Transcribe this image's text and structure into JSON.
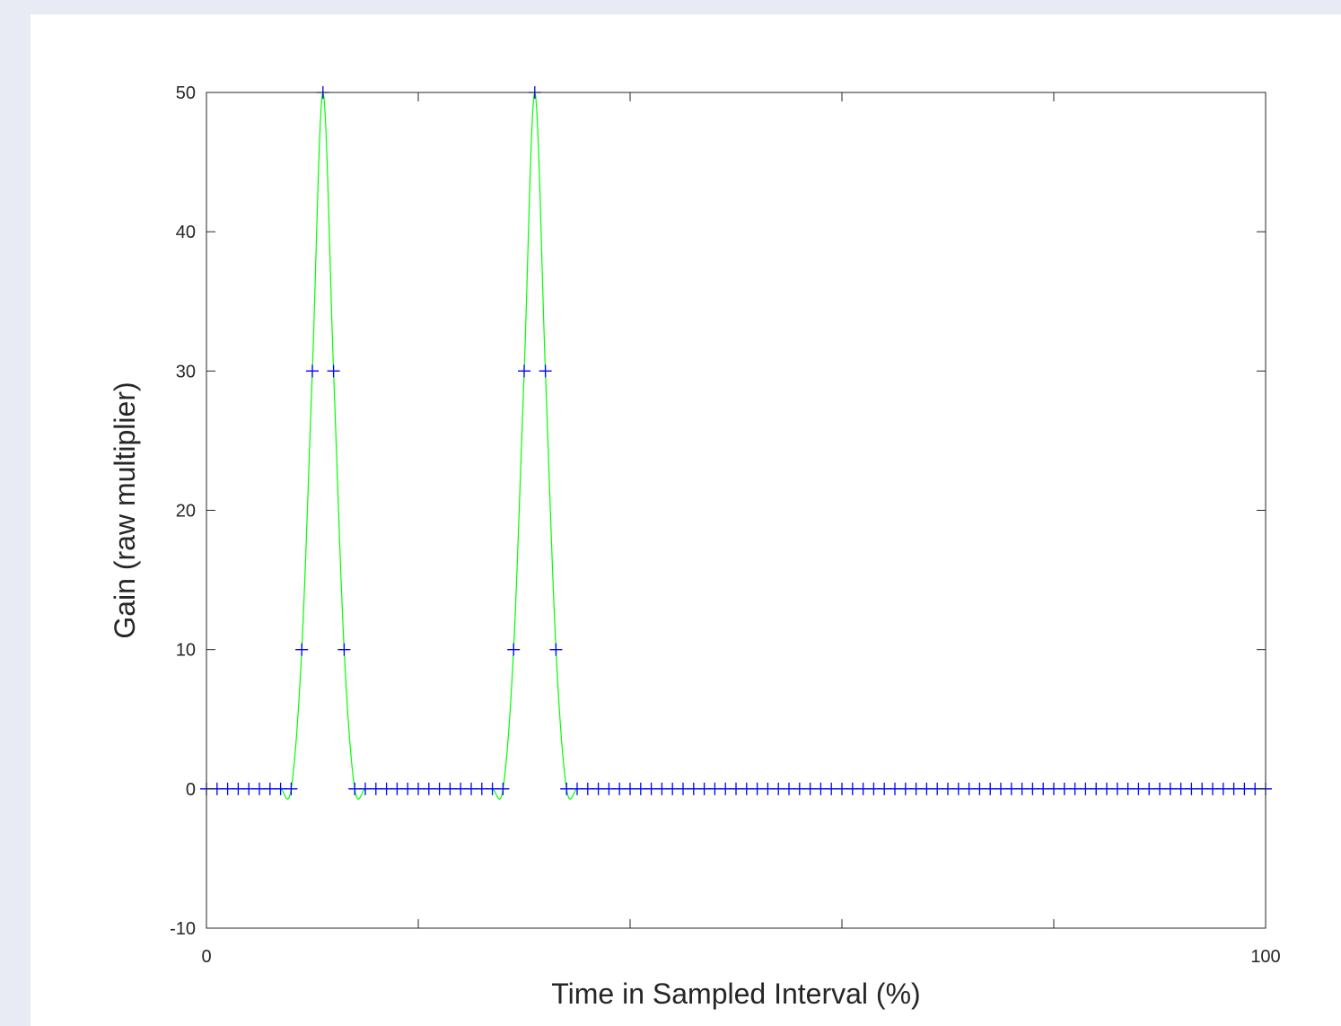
{
  "chart_data": {
    "type": "line",
    "title": "",
    "xlabel": "Time in Sampled Interval (%)",
    "ylabel": "Gain (raw multiplier)",
    "xlim": [
      0,
      100
    ],
    "ylim": [
      -10,
      50
    ],
    "x_tick_labels": [
      {
        "value": 0,
        "label": "0"
      },
      {
        "value": 100,
        "label": "100"
      }
    ],
    "x_minor_ticks": [
      20,
      40,
      60,
      80
    ],
    "y_tick_labels": [
      {
        "value": -10,
        "label": "-10"
      },
      {
        "value": 0,
        "label": "0"
      },
      {
        "value": 10,
        "label": "10"
      },
      {
        "value": 20,
        "label": "20"
      },
      {
        "value": 30,
        "label": "30"
      },
      {
        "value": 40,
        "label": "40"
      },
      {
        "value": 50,
        "label": "50"
      }
    ],
    "grid": false,
    "legend": "none",
    "colors": {
      "curve": "#00ff00",
      "markers": "#0000ff",
      "axes": "#262626"
    },
    "series": [
      {
        "style": "markers",
        "marker": "+",
        "x": [
          0,
          1,
          2,
          3,
          4,
          5,
          6,
          7,
          8,
          9,
          10,
          11,
          12,
          13,
          14,
          15,
          16,
          17,
          18,
          19,
          20,
          21,
          22,
          23,
          24,
          25,
          26,
          27,
          28,
          29,
          30,
          31,
          32,
          33,
          34,
          35,
          36,
          37,
          38,
          39,
          40,
          41,
          42,
          43,
          44,
          45,
          46,
          47,
          48,
          49,
          50,
          51,
          52,
          53,
          54,
          55,
          56,
          57,
          58,
          59,
          60,
          61,
          62,
          63,
          64,
          65,
          66,
          67,
          68,
          69,
          70,
          71,
          72,
          73,
          74,
          75,
          76,
          77,
          78,
          79,
          80,
          81,
          82,
          83,
          84,
          85,
          86,
          87,
          88,
          89,
          90,
          91,
          92,
          93,
          94,
          95,
          96,
          97,
          98,
          99,
          100
        ],
        "y": [
          0,
          0,
          0,
          0,
          0,
          0,
          0,
          0,
          0,
          10,
          30,
          50,
          30,
          10,
          0,
          0,
          0,
          0,
          0,
          0,
          0,
          0,
          0,
          0,
          0,
          0,
          0,
          0,
          0,
          10,
          30,
          50,
          30,
          10,
          0,
          0,
          0,
          0,
          0,
          0,
          0,
          0,
          0,
          0,
          0,
          0,
          0,
          0,
          0,
          0,
          0,
          0,
          0,
          0,
          0,
          0,
          0,
          0,
          0,
          0,
          0,
          0,
          0,
          0,
          0,
          0,
          0,
          0,
          0,
          0,
          0,
          0,
          0,
          0,
          0,
          0,
          0,
          0,
          0,
          0,
          0,
          0,
          0,
          0,
          0,
          0,
          0,
          0,
          0,
          0,
          0,
          0,
          0,
          0,
          0,
          0,
          0,
          0,
          0,
          0,
          0
        ]
      },
      {
        "style": "smooth-line",
        "interpolated_from": "markers"
      }
    ]
  }
}
